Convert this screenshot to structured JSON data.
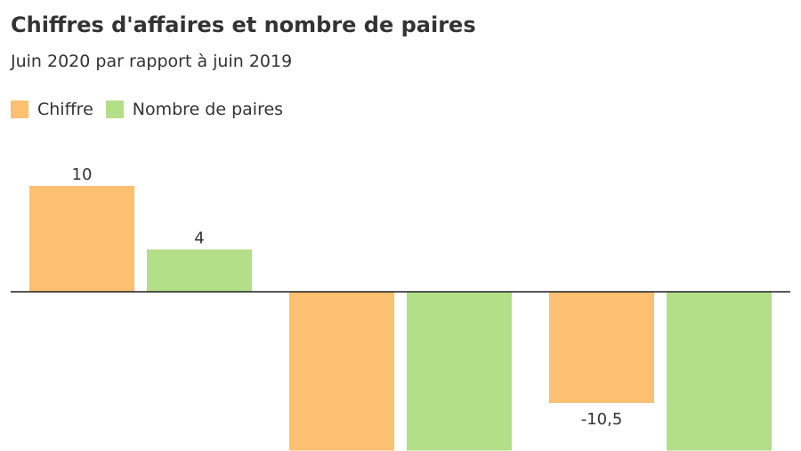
{
  "chart_data": {
    "type": "bar",
    "title": "Chiffres d'affaires et nombre de paires",
    "subtitle": "Juin 2020 par rapport à juin 2019",
    "categories": [
      "",
      "",
      ""
    ],
    "series": [
      {
        "name": "Chiffre",
        "color": "#fdbf71",
        "values": [
          10,
          -15,
          -10.5
        ],
        "labels": [
          "10",
          "",
          "-10,5"
        ]
      },
      {
        "name": "Nombre de paires",
        "color": "#b3df88",
        "values": [
          4,
          -15,
          -15
        ],
        "labels": [
          "4",
          "",
          ""
        ]
      }
    ],
    "ylim": [
      -15,
      10.5
    ],
    "legend_position": "top-left",
    "grid": false
  }
}
